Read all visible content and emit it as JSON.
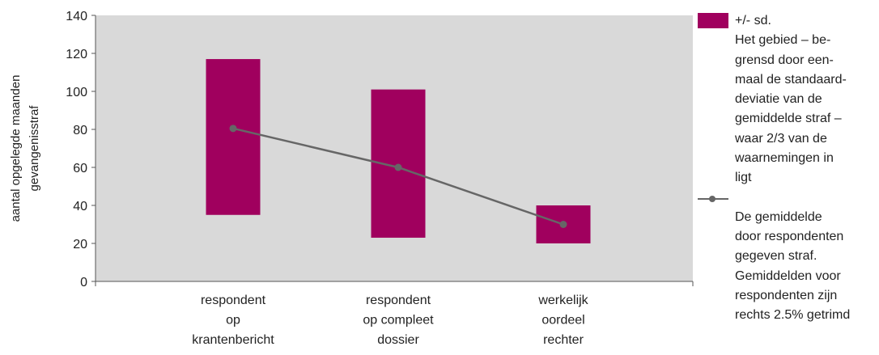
{
  "chart_data": {
    "type": "bar",
    "ylabel": [
      "aantal opgelegde maanden",
      "gevangenisstraf"
    ],
    "ylim": [
      0,
      140
    ],
    "yticks": [
      0,
      20,
      40,
      60,
      80,
      100,
      120,
      140
    ],
    "grid": false,
    "legend_position": "right",
    "categories": [
      [
        "respondent",
        "op",
        "krantenbericht"
      ],
      [
        "respondent",
        "op compleet",
        "dossier"
      ],
      [
        "werkelijk",
        "oordeel",
        "rechter"
      ]
    ],
    "series": [
      {
        "name": "+/- sd.",
        "kind": "range-bar",
        "color": "#a0005e",
        "low": [
          35,
          23,
          20
        ],
        "high": [
          117,
          101,
          40
        ]
      },
      {
        "name": "",
        "kind": "line",
        "color": "#666666",
        "values": [
          80.5,
          60,
          30
        ]
      }
    ]
  },
  "legend": {
    "bar_label": "+/- sd.",
    "bar_desc": [
      "Het gebied – be-",
      "grensd door een-",
      "maal de standaard-",
      "deviatie van de",
      "gemiddelde straf –",
      "waar 2/3 van de",
      "waarnemingen in",
      "ligt"
    ],
    "line_desc": [
      "De gemiddelde",
      "door respondenten",
      "gegeven straf.",
      "Gemiddelden voor",
      "respondenten zijn",
      "rechts 2.5% getrimd"
    ]
  },
  "colors": {
    "plot_background": "#d9d9d9",
    "bar": "#a0005e",
    "line": "#666666"
  }
}
